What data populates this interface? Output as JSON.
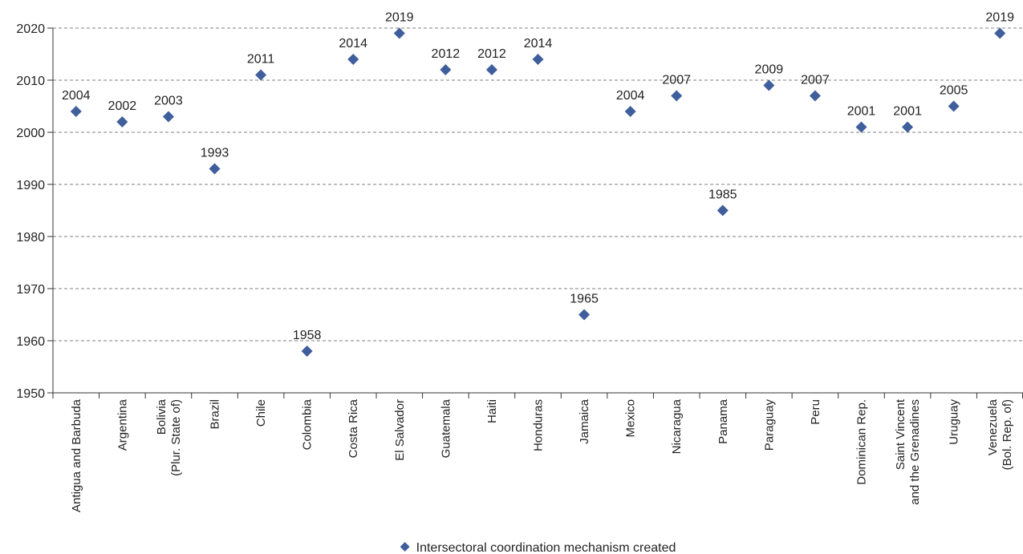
{
  "chart_data": {
    "type": "scatter",
    "title": "",
    "xlabel": "",
    "ylabel": "",
    "ylim": [
      1950,
      2020
    ],
    "yticks": [
      1950,
      1960,
      1970,
      1980,
      1990,
      2000,
      2010,
      2020
    ],
    "grid": "horizontal dashed",
    "legend_position": "bottom-center",
    "marker_color": "#3f5e9c",
    "categories": [
      [
        "Antigua and Barbuda"
      ],
      [
        "Argentina"
      ],
      [
        "Bolivia",
        "(Plur. State of)"
      ],
      [
        "Brazil"
      ],
      [
        "Chile"
      ],
      [
        "Colombia"
      ],
      [
        "Costa Rica"
      ],
      [
        "El Salvador"
      ],
      [
        "Guatemala"
      ],
      [
        "Haiti"
      ],
      [
        "Honduras"
      ],
      [
        "Jamaica"
      ],
      [
        "Mexico"
      ],
      [
        "Nicaragua"
      ],
      [
        "Panama"
      ],
      [
        "Paraguay"
      ],
      [
        "Peru"
      ],
      [
        "Dominican Rep."
      ],
      [
        "Saint Vincent",
        "and the Grenadines"
      ],
      [
        "Uruguay"
      ],
      [
        "Venezuela",
        "(Bol. Rep. of)"
      ]
    ],
    "series": [
      {
        "name": "Intersectoral coordination mechanism created",
        "values": [
          2004,
          2002,
          2003,
          1993,
          2011,
          1958,
          2014,
          2019,
          2012,
          2012,
          2014,
          1965,
          2004,
          2007,
          1985,
          2009,
          2007,
          2001,
          2001,
          2005,
          2019
        ]
      }
    ]
  }
}
